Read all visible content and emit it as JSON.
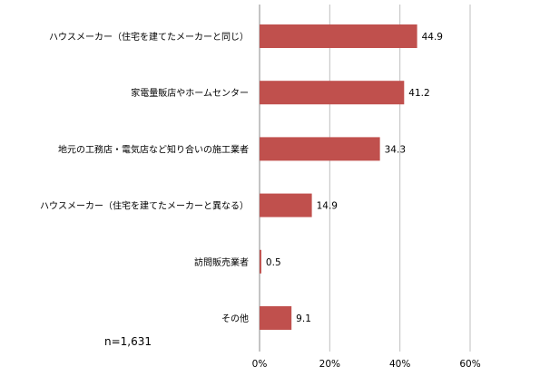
{
  "chart_data": {
    "type": "bar",
    "orientation": "horizontal",
    "categories": [
      "ハウスメーカー（住宅を建てたメーカーと同じ）",
      "家電量販店やホームセンター",
      "地元の工務店・電気店など知り合いの施工業者",
      "ハウスメーカー（住宅を建てたメーカーと異なる）",
      "訪問販売業者",
      "その他"
    ],
    "values": [
      44.9,
      41.2,
      34.3,
      14.9,
      0.5,
      9.1
    ],
    "value_labels": [
      "44.9",
      "41.2",
      "34.3",
      "14.9",
      "0.5",
      "9.1"
    ],
    "xlim": [
      0,
      60
    ],
    "x_ticks": [
      0,
      20,
      40,
      60
    ],
    "x_tick_labels": [
      "0%",
      "20%",
      "40%",
      "60%"
    ],
    "grid": "vertical",
    "legend": "none",
    "bar_color": "#c0504d",
    "title": "",
    "xlabel": "",
    "ylabel": ""
  },
  "note": "n=1,631"
}
